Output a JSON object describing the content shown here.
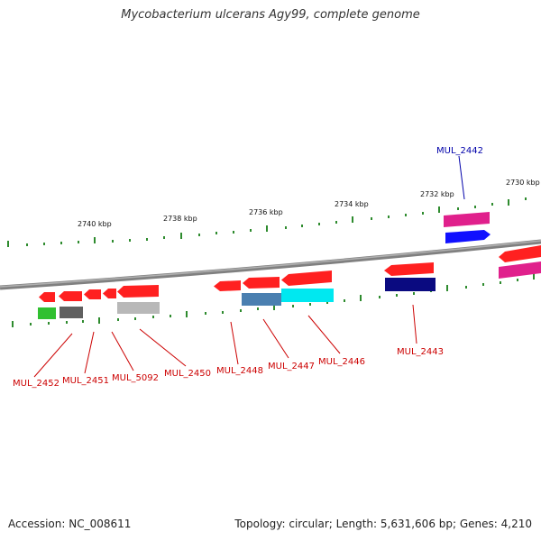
{
  "title": "Mycobacterium ulcerans Agy99, complete genome",
  "footer": {
    "accession": "Accession: NC_008611",
    "topology": "Topology: circular; Length: 5,631,606 bp; Genes: 4,210"
  },
  "scale": {
    "labels": [
      "2740 kbp",
      "2738 kbp",
      "2736 kbp",
      "2734 kbp",
      "2732 kbp",
      "2730 kbp"
    ]
  },
  "colors": {
    "backbone": "#808080",
    "tick": "#2e8b2e",
    "label_red": "#cc0000",
    "label_blue": "#0000aa",
    "red": "#ff2020",
    "pink": "#e0208c",
    "blue": "#1010ff",
    "navy": "#0a0a80",
    "steel": "#4a7fb0",
    "cyan": "#00e8f0",
    "green": "#30c030",
    "darkgray": "#606060",
    "lightgray": "#b8b8b8"
  },
  "gene_labels": [
    {
      "text": "MUL_2452",
      "color": "red"
    },
    {
      "text": "MUL_2451",
      "color": "red"
    },
    {
      "text": "MUL_5092",
      "color": "red"
    },
    {
      "text": "MUL_2450",
      "color": "red"
    },
    {
      "text": "MUL_2448",
      "color": "red"
    },
    {
      "text": "MUL_2447",
      "color": "red"
    },
    {
      "text": "MUL_2446",
      "color": "red"
    },
    {
      "text": "MUL_2443",
      "color": "red"
    },
    {
      "text": "MUL_2442",
      "color": "blue"
    }
  ]
}
